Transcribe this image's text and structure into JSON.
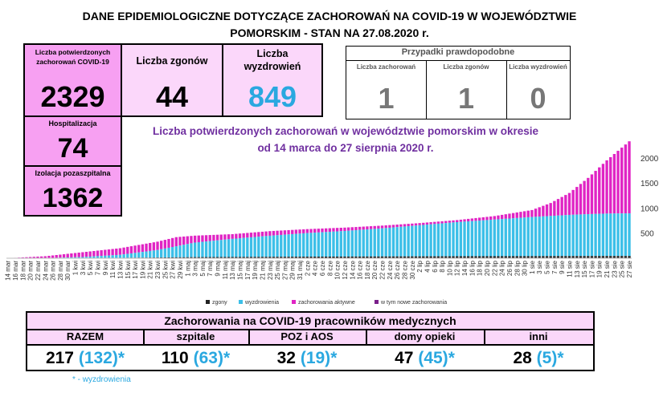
{
  "header": {
    "title_line1": "DANE EPIDEMIOLOGICZNE DOTYCZĄCE ZACHOROWAŃ NA COVID-19 W WOJEWÓDZTWIE",
    "title_line2": "POMORSKIM - STAN NA 27.08.2020 r."
  },
  "stats": {
    "confirmed_label": "Liczba potwierdzonych zachorowań COVID-19",
    "confirmed_value": "2329",
    "deaths_label": "Liczba zgonów",
    "deaths_value": "44",
    "recovered_label": "Liczba wyzdrowień",
    "recovered_value": "849",
    "hospital_label": "Hospitalizacja",
    "hospital_value": "74",
    "isolation_label": "Izolacja pozaszpitalna",
    "isolation_value": "1362"
  },
  "probable": {
    "title": "Przypadki prawdopodobne",
    "cases_label": "Liczba zachorowań",
    "cases_value": "1",
    "deaths_label": "Liczba zgonów",
    "deaths_value": "1",
    "recovered_label": "Liczba wyzdrowień",
    "recovered_value": "0"
  },
  "chart_title_line1": "Liczba potwierdzonych zachorowań w województwie pomorskim w okresie",
  "chart_title_line2": "od 14 marca do 27 sierpnia 2020 r.",
  "colors": {
    "deaths": "#222222",
    "recovered": "#3cbfe8",
    "active": "#e024c4",
    "new": "#7a1f8a",
    "pink_dark": "#f7a0f2",
    "pink_light": "#fbd7fa"
  },
  "chart_data": {
    "type": "bar",
    "stacked": true,
    "x_start": "14 mar",
    "x_end": "27 sie",
    "ylim": [
      0,
      2300
    ],
    "yticks": [
      0,
      500,
      1000,
      1500,
      2000
    ],
    "xtick_labels": [
      "14 mar",
      "16 mar",
      "18 mar",
      "20 mar",
      "22 mar",
      "24 mar",
      "26 mar",
      "28 mar",
      "30 mar",
      "1 kwi",
      "3 kwi",
      "5 kwi",
      "7 kwi",
      "9 kwi",
      "11 kwi",
      "13 kwi",
      "15 kwi",
      "17 kwi",
      "19 kwi",
      "21 kwi",
      "23 kwi",
      "25 kwi",
      "27 kwi",
      "29 kwi",
      "1 maj",
      "3 maj",
      "5 maj",
      "7 maj",
      "9 maj",
      "11 maj",
      "13 maj",
      "15 maj",
      "17 maj",
      "19 maj",
      "21 maj",
      "23 maj",
      "25 maj",
      "27 maj",
      "29 maj",
      "31 maj",
      "2 cze",
      "4 cze",
      "6 cze",
      "8 cze",
      "10 cze",
      "12 cze",
      "14 cze",
      "16 cze",
      "18 cze",
      "20 cze",
      "22 cze",
      "24 cze",
      "26 cze",
      "28 cze",
      "30 cze",
      "2 lip",
      "4 lip",
      "6 lip",
      "8 lip",
      "10 lip",
      "12 lip",
      "14 lip",
      "16 lip",
      "18 lip",
      "20 lip",
      "22 lip",
      "24 lip",
      "26 lip",
      "28 lip",
      "30 lip",
      "1 sie",
      "3 sie",
      "5 sie",
      "7 sie",
      "9 sie",
      "11 sie",
      "13 sie",
      "15 sie",
      "17 sie",
      "19 sie",
      "21 sie",
      "23 sie",
      "25 sie",
      "27 sie"
    ],
    "legend": [
      "zgony",
      "wyzdrowienia",
      "zachorowania aktywne",
      "w tym nowe zachorowania"
    ],
    "legend_position": "bottom",
    "keypoints": {
      "day_index": [
        0,
        10,
        20,
        30,
        40,
        45,
        50,
        60,
        70,
        80,
        90,
        100,
        110,
        120,
        130,
        140,
        145,
        150,
        155,
        160,
        166
      ],
      "total": [
        1,
        40,
        120,
        200,
        330,
        420,
        450,
        480,
        540,
        580,
        610,
        650,
        700,
        760,
        840,
        960,
        1100,
        1300,
        1600,
        1950,
        2329
      ],
      "recovered": [
        0,
        2,
        20,
        60,
        150,
        220,
        290,
        360,
        420,
        470,
        510,
        560,
        620,
        680,
        730,
        780,
        800,
        820,
        835,
        845,
        849
      ],
      "deaths": [
        0,
        1,
        4,
        8,
        14,
        18,
        22,
        25,
        28,
        31,
        33,
        35,
        37,
        39,
        40,
        41,
        42,
        43,
        43,
        44,
        44
      ]
    }
  },
  "medical": {
    "title": "Zachorowania na COVID-19 pracowników medycznych",
    "columns": [
      {
        "label": "RAZEM",
        "value": "217",
        "recovered": "(132)",
        "star": "*"
      },
      {
        "label": "szpitale",
        "value": "110",
        "recovered": "(63)",
        "star": "*"
      },
      {
        "label": "POZ i AOS",
        "value": "32",
        "recovered": "(19)",
        "star": "*"
      },
      {
        "label": "domy opieki",
        "value": "47",
        "recovered": "(45)",
        "star": "*"
      },
      {
        "label": "inni",
        "value": "28",
        "recovered": "(5)",
        "star": "*"
      }
    ]
  },
  "footnote": "*  - wyzdrowienia"
}
